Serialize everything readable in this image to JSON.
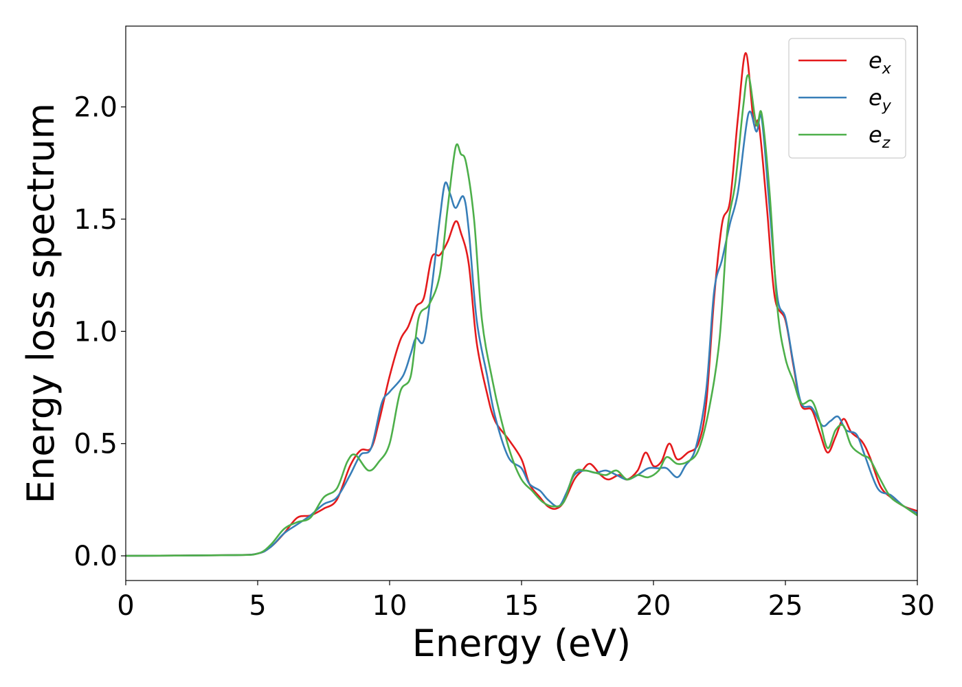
{
  "chart_data": {
    "type": "line",
    "title": "",
    "xlabel": "Energy (eV)",
    "ylabel": "Energy loss spectrum",
    "xlim": [
      0,
      30
    ],
    "ylim": [
      -0.11,
      2.36
    ],
    "xticks": [
      0,
      5,
      10,
      15,
      20,
      25,
      30
    ],
    "xtick_labels": [
      "0",
      "5",
      "10",
      "15",
      "20",
      "25",
      "30"
    ],
    "yticks": [
      0.0,
      0.5,
      1.0,
      1.5,
      2.0
    ],
    "ytick_labels": [
      "0.0",
      "0.5",
      "1.0",
      "1.5",
      "2.0"
    ],
    "grid": false,
    "legend_placement": "top-right",
    "series": [
      {
        "name": "e",
        "subscript": "x",
        "color": "#e41a1c",
        "points": [
          [
            0,
            0
          ],
          [
            4,
            0.003
          ],
          [
            5,
            0.01
          ],
          [
            5.5,
            0.04
          ],
          [
            6,
            0.1
          ],
          [
            6.5,
            0.17
          ],
          [
            7,
            0.18
          ],
          [
            7.5,
            0.21
          ],
          [
            8,
            0.25
          ],
          [
            8.5,
            0.4
          ],
          [
            8.9,
            0.47
          ],
          [
            9.3,
            0.48
          ],
          [
            9.6,
            0.6
          ],
          [
            10,
            0.8
          ],
          [
            10.4,
            0.96
          ],
          [
            10.7,
            1.02
          ],
          [
            11,
            1.11
          ],
          [
            11.3,
            1.15
          ],
          [
            11.6,
            1.33
          ],
          [
            11.9,
            1.34
          ],
          [
            12.2,
            1.4
          ],
          [
            12.5,
            1.49
          ],
          [
            12.7,
            1.44
          ],
          [
            13,
            1.3
          ],
          [
            13.3,
            0.95
          ],
          [
            13.7,
            0.72
          ],
          [
            14,
            0.6
          ],
          [
            14.5,
            0.52
          ],
          [
            15,
            0.43
          ],
          [
            15.3,
            0.32
          ],
          [
            15.7,
            0.26
          ],
          [
            16,
            0.22
          ],
          [
            16.3,
            0.21
          ],
          [
            16.6,
            0.24
          ],
          [
            17,
            0.34
          ],
          [
            17.3,
            0.38
          ],
          [
            17.6,
            0.41
          ],
          [
            18,
            0.36
          ],
          [
            18.3,
            0.34
          ],
          [
            18.7,
            0.36
          ],
          [
            19,
            0.34
          ],
          [
            19.4,
            0.38
          ],
          [
            19.7,
            0.46
          ],
          [
            20,
            0.4
          ],
          [
            20.3,
            0.42
          ],
          [
            20.6,
            0.5
          ],
          [
            20.9,
            0.43
          ],
          [
            21.3,
            0.46
          ],
          [
            21.7,
            0.5
          ],
          [
            22,
            0.68
          ],
          [
            22.3,
            1.15
          ],
          [
            22.6,
            1.48
          ],
          [
            22.9,
            1.58
          ],
          [
            23.2,
            1.95
          ],
          [
            23.5,
            2.24
          ],
          [
            23.8,
            1.93
          ],
          [
            24,
            1.92
          ],
          [
            24.3,
            1.55
          ],
          [
            24.6,
            1.15
          ],
          [
            25,
            1.05
          ],
          [
            25.3,
            0.85
          ],
          [
            25.6,
            0.67
          ],
          [
            26,
            0.65
          ],
          [
            26.3,
            0.55
          ],
          [
            26.6,
            0.46
          ],
          [
            26.9,
            0.53
          ],
          [
            27.2,
            0.61
          ],
          [
            27.5,
            0.55
          ],
          [
            27.9,
            0.51
          ],
          [
            28.2,
            0.44
          ],
          [
            28.6,
            0.31
          ],
          [
            29,
            0.26
          ],
          [
            29.5,
            0.22
          ],
          [
            30,
            0.2
          ]
        ]
      },
      {
        "name": "e",
        "subscript": "y",
        "color": "#377eb8",
        "points": [
          [
            0,
            0
          ],
          [
            4,
            0.003
          ],
          [
            5,
            0.01
          ],
          [
            5.5,
            0.04
          ],
          [
            6,
            0.1
          ],
          [
            6.5,
            0.14
          ],
          [
            7,
            0.18
          ],
          [
            7.5,
            0.23
          ],
          [
            8,
            0.26
          ],
          [
            8.5,
            0.36
          ],
          [
            8.9,
            0.45
          ],
          [
            9.3,
            0.48
          ],
          [
            9.7,
            0.68
          ],
          [
            10,
            0.73
          ],
          [
            10.5,
            0.8
          ],
          [
            10.8,
            0.9
          ],
          [
            11,
            0.97
          ],
          [
            11.3,
            0.96
          ],
          [
            11.6,
            1.2
          ],
          [
            11.9,
            1.5
          ],
          [
            12.1,
            1.66
          ],
          [
            12.3,
            1.61
          ],
          [
            12.5,
            1.55
          ],
          [
            12.8,
            1.6
          ],
          [
            13,
            1.45
          ],
          [
            13.3,
            1.05
          ],
          [
            13.7,
            0.8
          ],
          [
            14,
            0.62
          ],
          [
            14.5,
            0.44
          ],
          [
            15,
            0.39
          ],
          [
            15.3,
            0.32
          ],
          [
            15.7,
            0.29
          ],
          [
            16,
            0.25
          ],
          [
            16.4,
            0.22
          ],
          [
            16.7,
            0.28
          ],
          [
            17,
            0.36
          ],
          [
            17.4,
            0.38
          ],
          [
            17.8,
            0.37
          ],
          [
            18.2,
            0.38
          ],
          [
            18.6,
            0.36
          ],
          [
            19,
            0.34
          ],
          [
            19.4,
            0.36
          ],
          [
            19.8,
            0.39
          ],
          [
            20.2,
            0.39
          ],
          [
            20.5,
            0.39
          ],
          [
            20.9,
            0.35
          ],
          [
            21.2,
            0.4
          ],
          [
            21.6,
            0.48
          ],
          [
            22,
            0.74
          ],
          [
            22.3,
            1.18
          ],
          [
            22.6,
            1.32
          ],
          [
            22.9,
            1.48
          ],
          [
            23.2,
            1.62
          ],
          [
            23.6,
            1.97
          ],
          [
            23.9,
            1.89
          ],
          [
            24.1,
            1.95
          ],
          [
            24.4,
            1.55
          ],
          [
            24.7,
            1.15
          ],
          [
            25,
            1.06
          ],
          [
            25.3,
            0.86
          ],
          [
            25.6,
            0.68
          ],
          [
            26,
            0.66
          ],
          [
            26.4,
            0.58
          ],
          [
            26.7,
            0.6
          ],
          [
            27,
            0.62
          ],
          [
            27.3,
            0.56
          ],
          [
            27.7,
            0.54
          ],
          [
            28,
            0.45
          ],
          [
            28.5,
            0.3
          ],
          [
            29,
            0.27
          ],
          [
            29.5,
            0.22
          ],
          [
            30,
            0.19
          ]
        ]
      },
      {
        "name": "e",
        "subscript": "z",
        "color": "#4daf4a",
        "points": [
          [
            0,
            0
          ],
          [
            4,
            0.003
          ],
          [
            5,
            0.01
          ],
          [
            5.5,
            0.05
          ],
          [
            6,
            0.12
          ],
          [
            6.5,
            0.15
          ],
          [
            7,
            0.17
          ],
          [
            7.5,
            0.26
          ],
          [
            8,
            0.3
          ],
          [
            8.4,
            0.42
          ],
          [
            8.7,
            0.45
          ],
          [
            9.2,
            0.38
          ],
          [
            9.6,
            0.42
          ],
          [
            10,
            0.5
          ],
          [
            10.4,
            0.73
          ],
          [
            10.8,
            0.8
          ],
          [
            11.1,
            1.06
          ],
          [
            11.5,
            1.12
          ],
          [
            11.9,
            1.25
          ],
          [
            12.2,
            1.55
          ],
          [
            12.5,
            1.82
          ],
          [
            12.7,
            1.79
          ],
          [
            12.9,
            1.75
          ],
          [
            13.2,
            1.5
          ],
          [
            13.5,
            1.05
          ],
          [
            13.9,
            0.78
          ],
          [
            14.2,
            0.62
          ],
          [
            14.6,
            0.45
          ],
          [
            15,
            0.34
          ],
          [
            15.4,
            0.29
          ],
          [
            15.8,
            0.24
          ],
          [
            16.2,
            0.22
          ],
          [
            16.6,
            0.24
          ],
          [
            17,
            0.37
          ],
          [
            17.4,
            0.38
          ],
          [
            17.8,
            0.37
          ],
          [
            18.2,
            0.36
          ],
          [
            18.6,
            0.38
          ],
          [
            19,
            0.34
          ],
          [
            19.4,
            0.36
          ],
          [
            19.8,
            0.35
          ],
          [
            20.2,
            0.38
          ],
          [
            20.5,
            0.44
          ],
          [
            20.9,
            0.41
          ],
          [
            21.3,
            0.42
          ],
          [
            21.7,
            0.47
          ],
          [
            22.1,
            0.65
          ],
          [
            22.5,
            0.96
          ],
          [
            22.8,
            1.45
          ],
          [
            23.1,
            1.66
          ],
          [
            23.4,
            2.0
          ],
          [
            23.6,
            2.14
          ],
          [
            23.9,
            1.92
          ],
          [
            24.1,
            1.97
          ],
          [
            24.4,
            1.62
          ],
          [
            24.7,
            1.1
          ],
          [
            25,
            0.88
          ],
          [
            25.3,
            0.78
          ],
          [
            25.6,
            0.68
          ],
          [
            26,
            0.69
          ],
          [
            26.3,
            0.6
          ],
          [
            26.6,
            0.48
          ],
          [
            26.9,
            0.56
          ],
          [
            27.2,
            0.58
          ],
          [
            27.5,
            0.49
          ],
          [
            27.9,
            0.45
          ],
          [
            28.2,
            0.43
          ],
          [
            28.6,
            0.34
          ],
          [
            29,
            0.26
          ],
          [
            29.5,
            0.22
          ],
          [
            30,
            0.18
          ]
        ]
      }
    ]
  }
}
